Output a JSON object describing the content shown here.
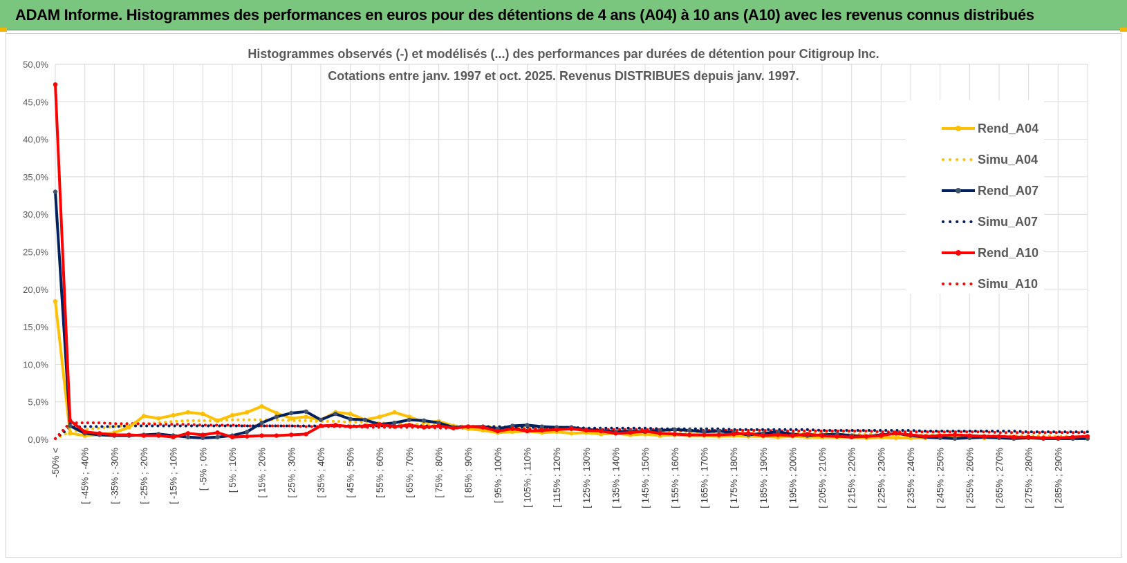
{
  "banner": {
    "title": "ADAM Informe. Histogrammes des performances en euros pour des détentions de 4 ans (A04) à 10 ans (A10) avec les revenus connus distribués"
  },
  "chart_data": {
    "type": "line",
    "title_line1": "Histogrammes observés (-) et modélisés (...) des performances par durées de détention pour Citigroup Inc.",
    "title_line2": "Cotations entre janv. 1997 et oct. 2025.  Revenus DISTRIBUES depuis janv. 1997.",
    "ylim": [
      0,
      50
    ],
    "y_ticks": [
      "0,0%",
      "5,0%",
      "10,0%",
      "15,0%",
      "20,0%",
      "25,0%",
      "30,0%",
      "35,0%",
      "40,0%",
      "45,0%",
      "50,0%"
    ],
    "grid": true,
    "legend_position": "right",
    "x_labels": [
      "-50% <",
      "[ -45% ; -40%",
      "[ -35% ; -30%",
      "[ -25% ; -20%",
      "[ -15% ; -10%",
      "[ -5% ; 0%",
      "[ 5% ; 10%",
      "[ 15% ; 20%",
      "[ 25% ; 30%",
      "[ 35% ; 40%",
      "[ 45% ; 50%",
      "[ 55% ; 60%",
      "[ 65% ; 70%",
      "[ 75% ; 80%",
      "[ 85% ; 90%",
      "[ 95% ; 100%",
      "[ 105% ; 110%",
      "[ 115% ; 120%",
      "[ 125% ; 130%",
      "[ 135% ; 140%",
      "[ 145% ; 150%",
      "[ 155% ; 160%",
      "[ 165% ; 170%",
      "[ 175% ; 180%",
      "[ 185% ; 190%",
      "[ 195% ; 200%",
      "[ 205% ; 210%",
      "[ 215% ; 220%",
      "[ 225% ; 230%",
      "[ 235% ; 240%",
      "[ 245% ; 250%",
      "[ 255% ; 260%",
      "[ 265% ; 270%",
      "[ 275% ; 280%",
      "[ 285% ; 290%"
    ],
    "series": [
      {
        "name": "Rend_A04",
        "color": "#ffc000",
        "style": "solid",
        "values": [
          18.4,
          0.8,
          0.5,
          0.6,
          0.9,
          1.6,
          3.1,
          2.8,
          3.2,
          3.6,
          3.4,
          2.5,
          3.2,
          3.6,
          4.4,
          3.5,
          2.8,
          3.0,
          2.6,
          3.6,
          3.4,
          2.6,
          3.0,
          3.6,
          3.0,
          2.3,
          2.4,
          1.8,
          1.4,
          1.2,
          0.9,
          1.0,
          1.1,
          0.9,
          1.0,
          0.8,
          0.9,
          0.7,
          0.8,
          0.6,
          0.7,
          0.5,
          0.6,
          0.5,
          0.5,
          0.4,
          0.5,
          0.4,
          0.4,
          0.3,
          0.4,
          0.3,
          0.3,
          0.3,
          0.3,
          0.2,
          0.3,
          0.2,
          0.2,
          0.2,
          0.3,
          0.2,
          0.2,
          0.2,
          0.2,
          0.1,
          0.2,
          0.1,
          0.1,
          0.1,
          0.1
        ]
      },
      {
        "name": "Simu_A04",
        "color": "#ffc000",
        "style": "dotted",
        "values": [
          0.1,
          1.0,
          1.3,
          1.5,
          1.7,
          1.9,
          2.1,
          2.2,
          2.4,
          2.5,
          2.5,
          2.5,
          2.6,
          2.6,
          2.6,
          2.6,
          2.5,
          2.5,
          2.4,
          2.4,
          2.3,
          2.3,
          2.2,
          2.1,
          2.0,
          2.0,
          1.9,
          1.8,
          1.8,
          1.7,
          1.6,
          1.6,
          1.5,
          1.5,
          1.4,
          1.4,
          1.3,
          1.3,
          1.2,
          1.2,
          1.2,
          1.1,
          1.1,
          1.0,
          1.0,
          1.0,
          0.9,
          0.9,
          0.9,
          0.8,
          0.8,
          0.8,
          0.8,
          0.7,
          0.7,
          0.7,
          0.7,
          0.6,
          0.6,
          0.6,
          0.6,
          0.6,
          0.5,
          0.5,
          0.5,
          0.5,
          0.5,
          0.5,
          0.4,
          0.4,
          0.4
        ]
      },
      {
        "name": "Rend_A07",
        "color": "#002060",
        "style": "solid",
        "values": [
          33.0,
          1.8,
          0.8,
          0.6,
          0.5,
          0.5,
          0.6,
          0.7,
          0.5,
          0.3,
          0.2,
          0.3,
          0.5,
          1.0,
          2.2,
          3.0,
          3.5,
          3.7,
          2.6,
          3.4,
          2.7,
          2.6,
          2.0,
          2.2,
          2.6,
          2.5,
          2.2,
          1.6,
          1.7,
          1.7,
          1.4,
          1.8,
          1.9,
          1.7,
          1.6,
          1.6,
          1.3,
          1.2,
          1.0,
          1.1,
          1.0,
          1.2,
          1.3,
          1.2,
          1.0,
          1.1,
          0.9,
          0.6,
          0.8,
          1.0,
          0.7,
          0.5,
          0.6,
          0.7,
          0.5,
          0.4,
          0.6,
          0.8,
          0.5,
          0.3,
          0.2,
          0.1,
          0.2,
          0.3,
          0.2,
          0.1,
          0.2,
          0.1,
          0.1,
          0.1,
          0.1
        ]
      },
      {
        "name": "Simu_A07",
        "color": "#002060",
        "style": "dotted",
        "values": [
          0.1,
          1.6,
          1.7,
          1.7,
          1.7,
          1.8,
          1.8,
          1.8,
          1.8,
          1.8,
          1.8,
          1.8,
          1.8,
          1.8,
          1.8,
          1.8,
          1.8,
          1.8,
          1.8,
          1.8,
          1.8,
          1.8,
          1.8,
          1.8,
          1.8,
          1.8,
          1.7,
          1.7,
          1.7,
          1.7,
          1.7,
          1.6,
          1.6,
          1.6,
          1.6,
          1.6,
          1.5,
          1.5,
          1.5,
          1.5,
          1.5,
          1.4,
          1.4,
          1.4,
          1.4,
          1.4,
          1.3,
          1.3,
          1.3,
          1.3,
          1.3,
          1.3,
          1.2,
          1.2,
          1.2,
          1.2,
          1.2,
          1.2,
          1.2,
          1.1,
          1.1,
          1.1,
          1.1,
          1.1,
          1.1,
          1.1,
          1.0,
          1.0,
          1.0,
          1.0,
          1.0
        ]
      },
      {
        "name": "Rend_A10",
        "color": "#ff0000",
        "style": "solid",
        "values": [
          47.3,
          2.5,
          1.0,
          0.8,
          0.6,
          0.6,
          0.5,
          0.5,
          0.3,
          0.8,
          0.6,
          0.9,
          0.3,
          0.4,
          0.5,
          0.5,
          0.6,
          0.7,
          1.8,
          1.9,
          1.7,
          1.8,
          2.0,
          1.7,
          1.9,
          1.6,
          1.8,
          1.5,
          1.7,
          1.6,
          1.1,
          1.4,
          1.1,
          1.2,
          1.3,
          1.4,
          1.2,
          1.1,
          0.8,
          0.9,
          1.1,
          0.8,
          0.7,
          0.6,
          0.6,
          0.6,
          0.7,
          0.8,
          0.5,
          0.6,
          0.5,
          0.7,
          0.5,
          0.4,
          0.3,
          0.4,
          0.5,
          0.8,
          0.6,
          0.4,
          0.5,
          0.6,
          0.5,
          0.4,
          0.4,
          0.3,
          0.3,
          0.2,
          0.2,
          0.3,
          0.4
        ]
      },
      {
        "name": "Simu_A10",
        "color": "#ff0000",
        "style": "dotted",
        "values": [
          0.1,
          2.2,
          2.2,
          2.2,
          2.1,
          2.1,
          2.1,
          2.0,
          2.0,
          2.0,
          1.9,
          1.9,
          1.9,
          1.8,
          1.8,
          1.8,
          1.8,
          1.7,
          1.7,
          1.7,
          1.7,
          1.6,
          1.6,
          1.6,
          1.6,
          1.6,
          1.5,
          1.5,
          1.5,
          1.5,
          1.5,
          1.4,
          1.4,
          1.4,
          1.4,
          1.4,
          1.3,
          1.3,
          1.3,
          1.3,
          1.3,
          1.3,
          1.2,
          1.2,
          1.2,
          1.2,
          1.2,
          1.2,
          1.2,
          1.1,
          1.1,
          1.1,
          1.1,
          1.1,
          1.1,
          1.1,
          1.0,
          1.0,
          1.0,
          1.0,
          1.0,
          1.0,
          1.0,
          1.0,
          0.9,
          0.9,
          0.9,
          0.9,
          0.9,
          0.9,
          0.9
        ]
      }
    ]
  }
}
